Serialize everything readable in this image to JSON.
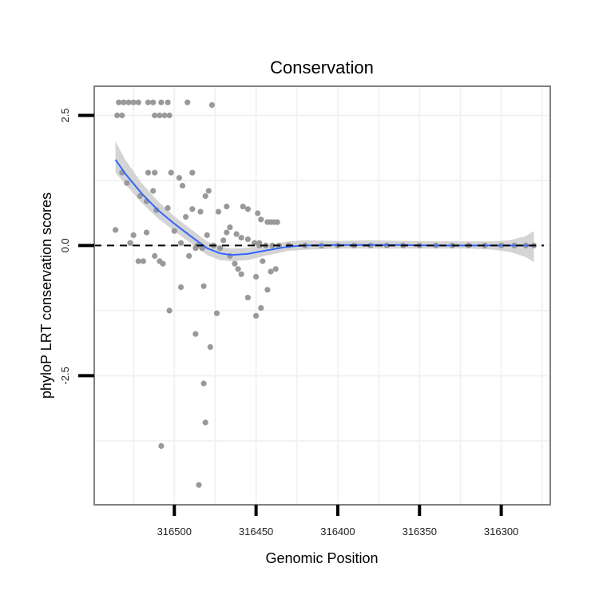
{
  "chart_data": {
    "type": "scatter",
    "title": "Conservation",
    "xlabel": "Genomic Position",
    "ylabel": "phyloP LRT conservation scores",
    "x_reversed": true,
    "xlim": [
      316270,
      316549
    ],
    "ylim": [
      -4.98,
      3.06
    ],
    "x_ticks": [
      316500,
      316450,
      316400,
      316350,
      316300
    ],
    "x_tick_labels": [
      "316500",
      "316450",
      "316400",
      "316350",
      "316300"
    ],
    "y_ticks": [
      2.5,
      0.0,
      -2.5
    ],
    "y_tick_labels": [
      "2.5",
      "0.0",
      "-2.5"
    ],
    "reference_line": {
      "y": 0,
      "style": "dashed"
    },
    "colors": {
      "points": "#999999",
      "smooth_line": "#3366FF",
      "ribbon": "#CCCCCC",
      "grid": "#F2F2F2",
      "panel_border": "#808080"
    },
    "points": [
      {
        "x": 316534,
        "y": 2.75
      },
      {
        "x": 316531,
        "y": 2.75
      },
      {
        "x": 316528,
        "y": 2.75
      },
      {
        "x": 316525,
        "y": 2.75
      },
      {
        "x": 316522,
        "y": 2.75
      },
      {
        "x": 316516,
        "y": 2.75
      },
      {
        "x": 316513,
        "y": 2.75
      },
      {
        "x": 316508,
        "y": 2.75
      },
      {
        "x": 316504,
        "y": 2.75
      },
      {
        "x": 316492,
        "y": 2.75
      },
      {
        "x": 316477,
        "y": 2.7
      },
      {
        "x": 316535,
        "y": 2.5
      },
      {
        "x": 316532,
        "y": 2.5
      },
      {
        "x": 316512,
        "y": 2.5
      },
      {
        "x": 316509,
        "y": 2.5
      },
      {
        "x": 316506,
        "y": 2.5
      },
      {
        "x": 316503,
        "y": 2.5
      },
      {
        "x": 316532,
        "y": 1.4
      },
      {
        "x": 316529,
        "y": 1.2
      },
      {
        "x": 316516,
        "y": 1.4
      },
      {
        "x": 316512,
        "y": 1.4
      },
      {
        "x": 316502,
        "y": 1.4
      },
      {
        "x": 316497,
        "y": 1.3
      },
      {
        "x": 316495,
        "y": 1.15
      },
      {
        "x": 316489,
        "y": 1.4
      },
      {
        "x": 316521,
        "y": 0.95
      },
      {
        "x": 316517,
        "y": 0.85
      },
      {
        "x": 316513,
        "y": 1.05
      },
      {
        "x": 316511,
        "y": 0.68
      },
      {
        "x": 316504,
        "y": 0.72
      },
      {
        "x": 316493,
        "y": 0.55
      },
      {
        "x": 316489,
        "y": 0.7
      },
      {
        "x": 316484,
        "y": 0.65
      },
      {
        "x": 316481,
        "y": 0.95
      },
      {
        "x": 316479,
        "y": 1.05
      },
      {
        "x": 316473,
        "y": 0.65
      },
      {
        "x": 316468,
        "y": 0.75
      },
      {
        "x": 316458,
        "y": 0.75
      },
      {
        "x": 316455,
        "y": 0.7
      },
      {
        "x": 316449,
        "y": 0.62
      },
      {
        "x": 316447,
        "y": 0.5
      },
      {
        "x": 316443,
        "y": 0.45
      },
      {
        "x": 316441,
        "y": 0.45
      },
      {
        "x": 316439,
        "y": 0.45
      },
      {
        "x": 316437,
        "y": 0.45
      },
      {
        "x": 316466,
        "y": 0.35
      },
      {
        "x": 316468,
        "y": 0.25
      },
      {
        "x": 316470,
        "y": 0.1
      },
      {
        "x": 316462,
        "y": 0.22
      },
      {
        "x": 316459,
        "y": 0.15
      },
      {
        "x": 316455,
        "y": 0.12
      },
      {
        "x": 316451,
        "y": 0.05
      },
      {
        "x": 316448,
        "y": 0.05
      },
      {
        "x": 316536,
        "y": 0.3
      },
      {
        "x": 316525,
        "y": 0.2
      },
      {
        "x": 316517,
        "y": 0.25
      },
      {
        "x": 316500,
        "y": 0.28
      },
      {
        "x": 316496,
        "y": 0.05
      },
      {
        "x": 316480,
        "y": 0.2
      },
      {
        "x": 316486,
        "y": 0.0
      },
      {
        "x": 316483,
        "y": -0.05
      },
      {
        "x": 316476,
        "y": 0.0
      },
      {
        "x": 316472,
        "y": -0.05
      },
      {
        "x": 316527,
        "y": 0.05
      },
      {
        "x": 316522,
        "y": -0.3
      },
      {
        "x": 316519,
        "y": -0.3
      },
      {
        "x": 316512,
        "y": -0.2
      },
      {
        "x": 316509,
        "y": -0.3
      },
      {
        "x": 316507,
        "y": -0.35
      },
      {
        "x": 316491,
        "y": -0.2
      },
      {
        "x": 316487,
        "y": -0.05
      },
      {
        "x": 316466,
        "y": -0.2
      },
      {
        "x": 316463,
        "y": -0.35
      },
      {
        "x": 316461,
        "y": -0.45
      },
      {
        "x": 316459,
        "y": -0.55
      },
      {
        "x": 316450,
        "y": -0.6
      },
      {
        "x": 316446,
        "y": -0.3
      },
      {
        "x": 316441,
        "y": -0.5
      },
      {
        "x": 316438,
        "y": -0.45
      },
      {
        "x": 316496,
        "y": -0.8
      },
      {
        "x": 316482,
        "y": -0.78
      },
      {
        "x": 316455,
        "y": -1.0
      },
      {
        "x": 316443,
        "y": -0.85
      },
      {
        "x": 316503,
        "y": -1.25
      },
      {
        "x": 316474,
        "y": -1.3
      },
      {
        "x": 316450,
        "y": -1.35
      },
      {
        "x": 316447,
        "y": -1.2
      },
      {
        "x": 316487,
        "y": -1.7
      },
      {
        "x": 316478,
        "y": -1.95
      },
      {
        "x": 316482,
        "y": -2.65
      },
      {
        "x": 316481,
        "y": -3.4
      },
      {
        "x": 316508,
        "y": -3.85
      },
      {
        "x": 316485,
        "y": -4.6
      },
      {
        "x": 316448,
        "y": 0.0
      },
      {
        "x": 316444,
        "y": 0.0
      },
      {
        "x": 316440,
        "y": 0.0
      },
      {
        "x": 316436,
        "y": 0.0
      },
      {
        "x": 316430,
        "y": 0.0
      },
      {
        "x": 316420,
        "y": 0.0
      },
      {
        "x": 316410,
        "y": 0.0
      },
      {
        "x": 316400,
        "y": 0.0
      },
      {
        "x": 316390,
        "y": 0.0
      },
      {
        "x": 316380,
        "y": 0.0
      },
      {
        "x": 316370,
        "y": 0.0
      },
      {
        "x": 316360,
        "y": 0.0
      },
      {
        "x": 316350,
        "y": 0.0
      },
      {
        "x": 316340,
        "y": 0.0
      },
      {
        "x": 316330,
        "y": 0.0
      },
      {
        "x": 316320,
        "y": 0.0
      },
      {
        "x": 316310,
        "y": 0.0
      },
      {
        "x": 316300,
        "y": 0.0
      },
      {
        "x": 316292,
        "y": 0.0
      },
      {
        "x": 316285,
        "y": 0.0
      },
      {
        "x": 316280,
        "y": 0.0
      }
    ],
    "smooth": [
      {
        "x": 316536,
        "y": 1.65,
        "lo": 1.4,
        "hi": 2.0
      },
      {
        "x": 316530,
        "y": 1.38,
        "lo": 1.18,
        "hi": 1.65
      },
      {
        "x": 316520,
        "y": 1.0,
        "lo": 0.82,
        "hi": 1.2
      },
      {
        "x": 316510,
        "y": 0.68,
        "lo": 0.52,
        "hi": 0.85
      },
      {
        "x": 316500,
        "y": 0.42,
        "lo": 0.28,
        "hi": 0.56
      },
      {
        "x": 316490,
        "y": 0.18,
        "lo": 0.05,
        "hi": 0.32
      },
      {
        "x": 316480,
        "y": -0.05,
        "lo": -0.18,
        "hi": 0.08
      },
      {
        "x": 316472,
        "y": -0.15,
        "lo": -0.28,
        "hi": -0.02
      },
      {
        "x": 316465,
        "y": -0.18,
        "lo": -0.3,
        "hi": -0.06
      },
      {
        "x": 316455,
        "y": -0.16,
        "lo": -0.28,
        "hi": -0.04
      },
      {
        "x": 316445,
        "y": -0.1,
        "lo": -0.2,
        "hi": 0.0
      },
      {
        "x": 316430,
        "y": -0.02,
        "lo": -0.1,
        "hi": 0.08
      },
      {
        "x": 316420,
        "y": 0.0,
        "lo": -0.08,
        "hi": 0.1
      },
      {
        "x": 316400,
        "y": 0.01,
        "lo": -0.06,
        "hi": 0.09
      },
      {
        "x": 316380,
        "y": 0.01,
        "lo": -0.06,
        "hi": 0.1
      },
      {
        "x": 316360,
        "y": 0.01,
        "lo": -0.06,
        "hi": 0.09
      },
      {
        "x": 316340,
        "y": 0.0,
        "lo": -0.06,
        "hi": 0.08
      },
      {
        "x": 316320,
        "y": 0.0,
        "lo": -0.06,
        "hi": 0.08
      },
      {
        "x": 316305,
        "y": 0.0,
        "lo": -0.08,
        "hi": 0.08
      },
      {
        "x": 316295,
        "y": 0.0,
        "lo": -0.12,
        "hi": 0.1
      },
      {
        "x": 316285,
        "y": 0.0,
        "lo": -0.22,
        "hi": 0.18
      },
      {
        "x": 316280,
        "y": 0.0,
        "lo": -0.32,
        "hi": 0.28
      }
    ]
  }
}
